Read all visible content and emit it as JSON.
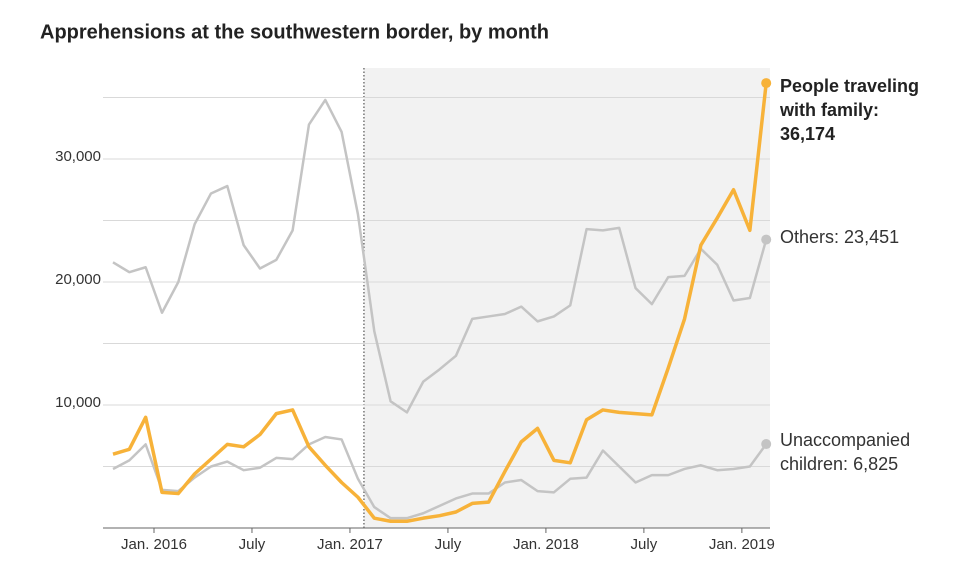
{
  "chart_data": {
    "type": "line",
    "title": "Apprehensions at the southwestern border, by month",
    "categories": [
      null,
      null,
      null,
      "Jan. 2016",
      null,
      null,
      null,
      null,
      null,
      "July",
      null,
      null,
      null,
      null,
      null,
      "Jan. 2017",
      null,
      null,
      null,
      null,
      null,
      "July",
      null,
      null,
      null,
      null,
      null,
      "Jan. 2018",
      null,
      null,
      null,
      null,
      null,
      "July",
      null,
      null,
      null,
      null,
      null,
      "Jan. 2019",
      null
    ],
    "series": [
      {
        "name": "Others:",
        "color": "#c4c4c4",
        "end_label": "23,451",
        "values": [
          21600,
          20800,
          21200,
          17500,
          20000,
          24700,
          27200,
          27800,
          23000,
          21100,
          21800,
          24200,
          32800,
          34800,
          32200,
          25500,
          16000,
          10300,
          9400,
          11900,
          12900,
          14000,
          17000,
          17200,
          17400,
          18000,
          16800,
          17200,
          18100,
          24300,
          24200,
          24400,
          19500,
          18200,
          20400,
          20500,
          22700,
          21400,
          18500,
          18700,
          23451
        ]
      },
      {
        "name": "Unaccompanied children:",
        "color": "#c4c4c4",
        "end_label": "6,825",
        "values": [
          4800,
          5500,
          6800,
          3100,
          3000,
          4100,
          5000,
          5400,
          4700,
          4900,
          5700,
          5600,
          6800,
          7400,
          7200,
          4000,
          1700,
          800,
          800,
          1200,
          1800,
          2400,
          2800,
          2800,
          3700,
          3900,
          3000,
          2900,
          4000,
          4100,
          6300,
          5000,
          3700,
          4300,
          4300,
          4800,
          5100,
          4700,
          4800,
          5000,
          6825
        ]
      },
      {
        "name": "People traveling with family:",
        "color": "#f7b239",
        "end_label": "36,174",
        "values": [
          6000,
          6400,
          9000,
          2900,
          2800,
          4400,
          5600,
          6800,
          6600,
          7600,
          9300,
          9600,
          6600,
          5100,
          3700,
          2500,
          800,
          550,
          550,
          800,
          1000,
          1300,
          2000,
          2100,
          4600,
          7000,
          8100,
          5500,
          5300,
          8800,
          9600,
          9400,
          9300,
          9200,
          13000,
          17000,
          23000,
          25200,
          27500,
          24200,
          36174
        ]
      }
    ],
    "ylim": [
      0,
      37400
    ],
    "yticks": [
      {
        "value": 10000,
        "label": "10,000"
      },
      {
        "value": 20000,
        "label": "20,000"
      },
      {
        "value": 30000,
        "label": "30,000"
      }
    ],
    "ygrid": [
      5000,
      10000,
      15000,
      20000,
      25000,
      30000,
      35000
    ],
    "grid": true
  }
}
